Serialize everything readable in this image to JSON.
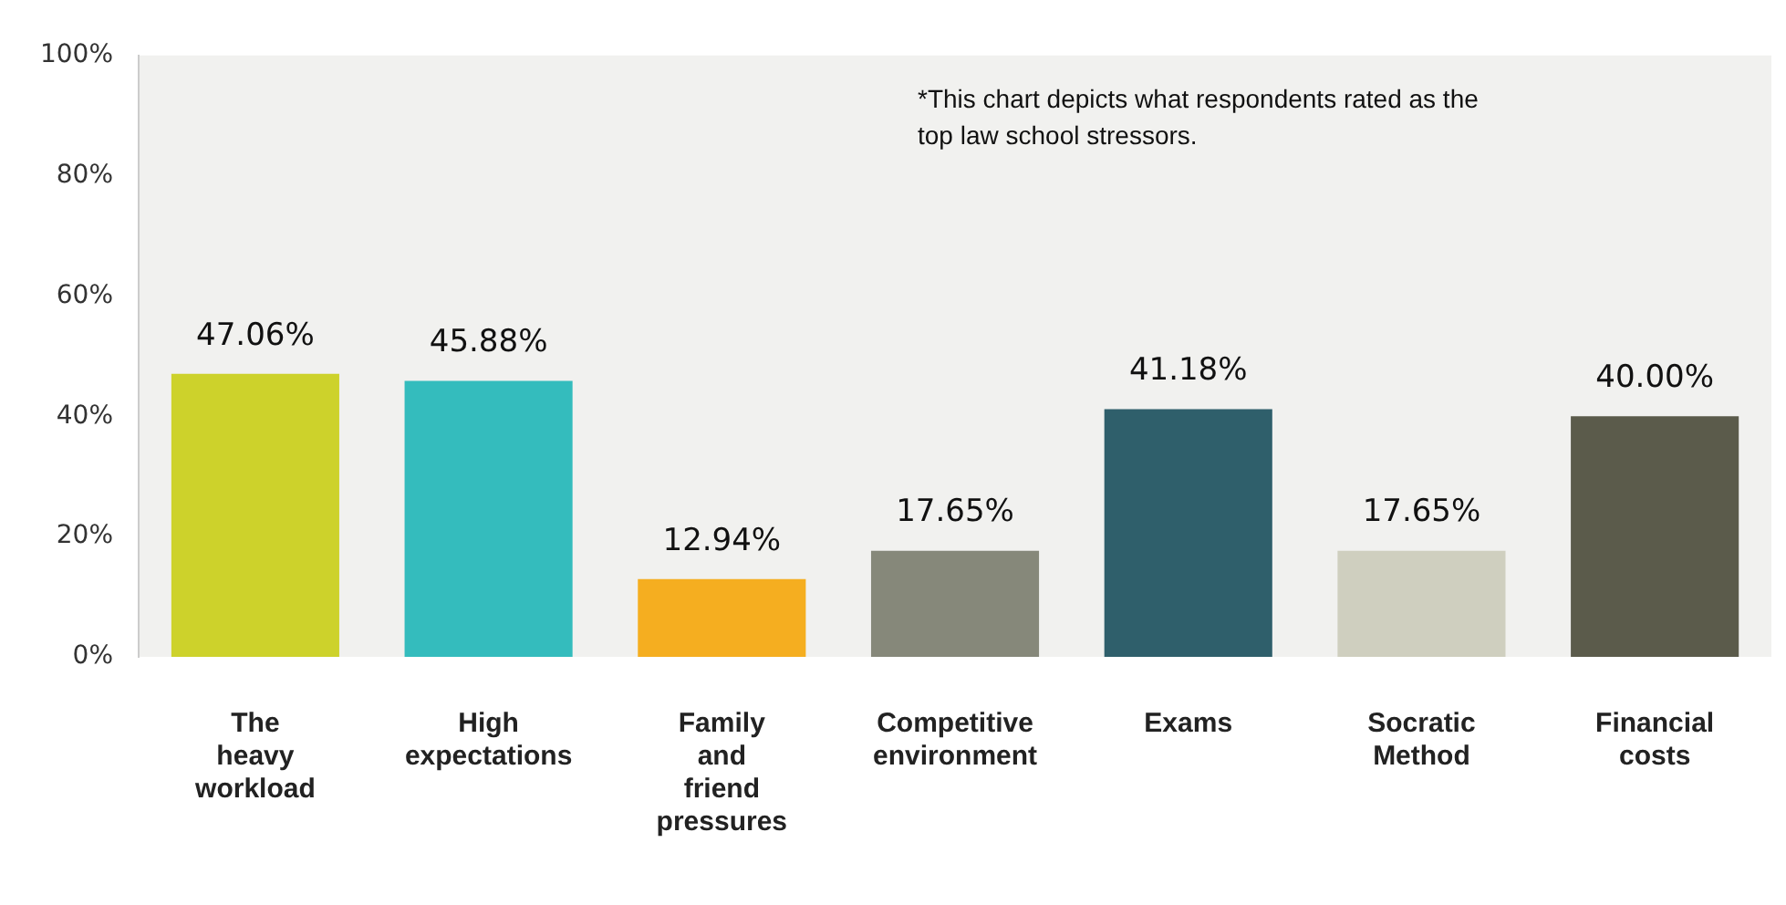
{
  "chart_data": {
    "type": "bar",
    "categories": [
      "The heavy workload",
      "High expectations",
      "Family and friend pressures",
      "Competitive environment",
      "Exams",
      "Socratic Method",
      "Financial costs"
    ],
    "values": [
      47.06,
      45.88,
      12.94,
      17.65,
      41.18,
      17.65,
      40.0
    ],
    "colors": [
      "#cdd22b",
      "#34bcbd",
      "#f5ae20",
      "#86887a",
      "#2f5f6b",
      "#cfcfbf",
      "#5b5b4b"
    ],
    "value_labels": [
      "47.06%",
      "45.88%",
      "12.94%",
      "17.65%",
      "41.18%",
      "17.65%",
      "40.00%"
    ],
    "ylim": [
      0,
      100
    ],
    "yticks": [
      {
        "value": 0,
        "label": "0%"
      },
      {
        "value": 20,
        "label": "20%"
      },
      {
        "value": 40,
        "label": "40%"
      },
      {
        "value": 60,
        "label": "60%"
      },
      {
        "value": 80,
        "label": "80%"
      },
      {
        "value": 100,
        "label": "100%"
      }
    ],
    "grid": false,
    "legend": false,
    "annotations": [
      "*This chart depicts what respondents rated as the top law school stressors."
    ]
  }
}
